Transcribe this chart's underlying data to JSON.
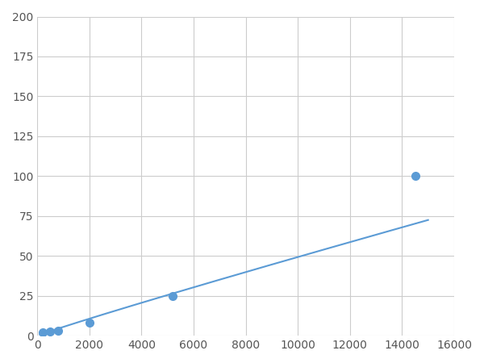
{
  "x_data": [
    200,
    500,
    800,
    2000,
    5200,
    14500
  ],
  "y_data": [
    2,
    2.5,
    3,
    8,
    25,
    100
  ],
  "marker_x": [
    200,
    500,
    800,
    2000,
    5200,
    14500
  ],
  "marker_y": [
    2,
    2.5,
    3,
    8,
    25,
    100
  ],
  "line_color": "#5b9bd5",
  "marker_color": "#5b9bd5",
  "marker_size": 7,
  "xlim": [
    0,
    16000
  ],
  "ylim": [
    0,
    200
  ],
  "xticks": [
    0,
    2000,
    4000,
    6000,
    8000,
    10000,
    12000,
    14000,
    16000
  ],
  "yticks": [
    0,
    25,
    50,
    75,
    100,
    125,
    150,
    175,
    200
  ],
  "grid_color": "#cccccc",
  "background_color": "#ffffff",
  "figsize": [
    6.0,
    4.5
  ],
  "dpi": 100
}
